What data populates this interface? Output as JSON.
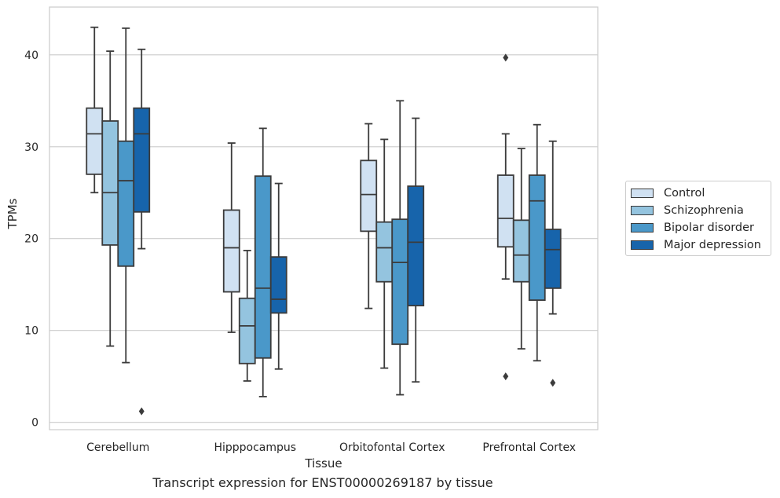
{
  "caption": "Transcript expression for ENST00000269187 by tissue",
  "chart_data": {
    "type": "box",
    "xlabel": "Tissue",
    "ylabel": "TPMs",
    "ylim": [
      -0.8,
      45.2
    ],
    "yticks": [
      "0",
      "10",
      "20",
      "30",
      "40"
    ],
    "grid": "horizontal",
    "legend_position": "right",
    "categories": [
      "Cerebellum",
      "Hipppocampus",
      "Orbitofontal Cortex",
      "Prefrontal Cortex"
    ],
    "series": [
      {
        "name": "Control",
        "color": "#d0e1f2",
        "boxes": [
          {
            "whislo": 25.0,
            "q1": 27.0,
            "med": 31.4,
            "q3": 34.2,
            "whishi": 43.0,
            "fliers": []
          },
          {
            "whislo": 9.8,
            "q1": 14.2,
            "med": 19.0,
            "q3": 23.1,
            "whishi": 30.4,
            "fliers": []
          },
          {
            "whislo": 12.4,
            "q1": 20.8,
            "med": 24.8,
            "q3": 28.5,
            "whishi": 32.5,
            "fliers": []
          },
          {
            "whislo": 15.6,
            "q1": 19.1,
            "med": 22.2,
            "q3": 26.9,
            "whishi": 31.4,
            "fliers": [
              39.7,
              5.0
            ]
          }
        ]
      },
      {
        "name": "Schizophrenia",
        "color": "#94c4df",
        "boxes": [
          {
            "whislo": 8.3,
            "q1": 19.3,
            "med": 25.0,
            "q3": 32.8,
            "whishi": 40.4,
            "fliers": []
          },
          {
            "whislo": 4.5,
            "q1": 6.4,
            "med": 10.5,
            "q3": 13.5,
            "whishi": 18.7,
            "fliers": []
          },
          {
            "whislo": 5.9,
            "q1": 15.3,
            "med": 19.0,
            "q3": 21.8,
            "whishi": 30.8,
            "fliers": []
          },
          {
            "whislo": 8.0,
            "q1": 15.3,
            "med": 18.2,
            "q3": 22.0,
            "whishi": 29.8,
            "fliers": []
          }
        ]
      },
      {
        "name": "Bipolar disorder",
        "color": "#4a98c9",
        "boxes": [
          {
            "whislo": 6.5,
            "q1": 17.0,
            "med": 26.3,
            "q3": 30.6,
            "whishi": 42.9,
            "fliers": []
          },
          {
            "whislo": 2.8,
            "q1": 7.0,
            "med": 14.6,
            "q3": 26.8,
            "whishi": 32.0,
            "fliers": []
          },
          {
            "whislo": 3.0,
            "q1": 8.5,
            "med": 17.4,
            "q3": 22.1,
            "whishi": 35.0,
            "fliers": []
          },
          {
            "whislo": 6.7,
            "q1": 13.3,
            "med": 24.1,
            "q3": 26.9,
            "whishi": 32.4,
            "fliers": []
          }
        ]
      },
      {
        "name": "Major depression",
        "color": "#1764ab",
        "boxes": [
          {
            "whislo": 18.9,
            "q1": 22.9,
            "med": 31.4,
            "q3": 34.2,
            "whishi": 40.6,
            "fliers": [
              1.2
            ]
          },
          {
            "whislo": 5.8,
            "q1": 11.9,
            "med": 13.4,
            "q3": 18.0,
            "whishi": 26.0,
            "fliers": []
          },
          {
            "whislo": 4.4,
            "q1": 12.7,
            "med": 19.6,
            "q3": 25.7,
            "whishi": 33.1,
            "fliers": []
          },
          {
            "whislo": 11.8,
            "q1": 14.6,
            "med": 18.8,
            "q3": 21.0,
            "whishi": 30.6,
            "fliers": [
              4.3
            ]
          }
        ]
      }
    ]
  }
}
